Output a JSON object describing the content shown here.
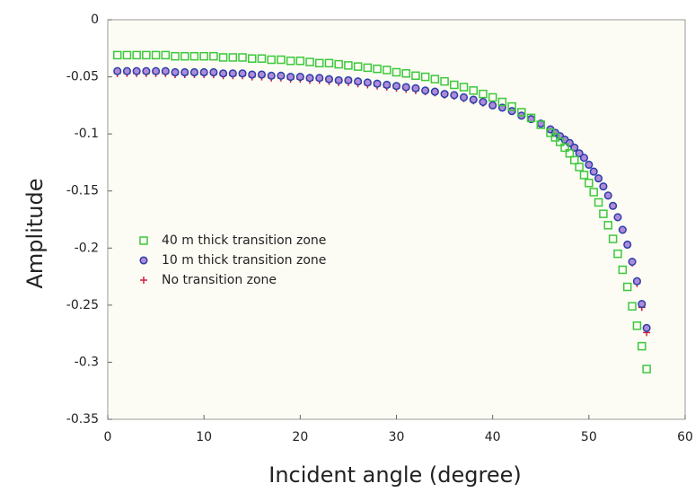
{
  "chart_data": {
    "type": "scatter",
    "xlabel": "Incident angle (degree)",
    "ylabel": "Amplitude",
    "xlim": [
      0,
      60
    ],
    "ylim": [
      -0.35,
      0
    ],
    "xticks": [
      0,
      10,
      20,
      30,
      40,
      50,
      60
    ],
    "yticks": [
      0,
      -0.05,
      -0.1,
      -0.15,
      -0.2,
      -0.25,
      -0.3,
      -0.35
    ],
    "x": [
      1,
      2,
      3,
      4,
      5,
      6,
      7,
      8,
      9,
      10,
      11,
      12,
      13,
      14,
      15,
      16,
      17,
      18,
      19,
      20,
      21,
      22,
      23,
      24,
      25,
      26,
      27,
      28,
      29,
      30,
      31,
      32,
      33,
      34,
      35,
      36,
      37,
      38,
      39,
      40,
      41,
      42,
      43,
      44,
      45,
      46,
      46.5,
      47,
      47.5,
      48,
      48.5,
      49,
      49.5,
      50,
      50.5,
      51,
      51.5,
      52,
      52.5,
      53,
      53.5,
      54,
      54.5,
      55,
      55.5,
      56
    ],
    "series": [
      {
        "name": "40 m thick transition zone",
        "color": "#3cc83c",
        "marker": "square",
        "values": [
          -0.031,
          -0.031,
          -0.031,
          -0.031,
          -0.031,
          -0.031,
          -0.032,
          -0.032,
          -0.032,
          -0.032,
          -0.032,
          -0.033,
          -0.033,
          -0.033,
          -0.034,
          -0.034,
          -0.035,
          -0.035,
          -0.036,
          -0.036,
          -0.037,
          -0.038,
          -0.038,
          -0.039,
          -0.04,
          -0.041,
          -0.042,
          -0.043,
          -0.044,
          -0.046,
          -0.047,
          -0.049,
          -0.05,
          -0.052,
          -0.054,
          -0.057,
          -0.059,
          -0.062,
          -0.065,
          -0.068,
          -0.072,
          -0.076,
          -0.081,
          -0.086,
          -0.092,
          -0.099,
          -0.103,
          -0.107,
          -0.112,
          -0.117,
          -0.123,
          -0.129,
          -0.136,
          -0.143,
          -0.151,
          -0.16,
          -0.17,
          -0.18,
          -0.192,
          -0.205,
          -0.219,
          -0.234,
          -0.251,
          -0.268,
          -0.286,
          -0.306
        ]
      },
      {
        "name": "10 m thick transition zone",
        "color": "#2a3fa8",
        "marker": "circle",
        "values": [
          -0.045,
          -0.045,
          -0.045,
          -0.045,
          -0.045,
          -0.045,
          -0.046,
          -0.046,
          -0.046,
          -0.046,
          -0.046,
          -0.047,
          -0.047,
          -0.047,
          -0.048,
          -0.048,
          -0.049,
          -0.049,
          -0.05,
          -0.05,
          -0.051,
          -0.051,
          -0.052,
          -0.053,
          -0.053,
          -0.054,
          -0.055,
          -0.056,
          -0.057,
          -0.058,
          -0.059,
          -0.06,
          -0.062,
          -0.063,
          -0.065,
          -0.066,
          -0.068,
          -0.07,
          -0.072,
          -0.075,
          -0.077,
          -0.08,
          -0.084,
          -0.087,
          -0.091,
          -0.096,
          -0.099,
          -0.102,
          -0.105,
          -0.108,
          -0.112,
          -0.117,
          -0.121,
          -0.127,
          -0.133,
          -0.139,
          -0.146,
          -0.154,
          -0.163,
          -0.173,
          -0.184,
          -0.197,
          -0.212,
          -0.229,
          -0.249,
          -0.27
        ]
      },
      {
        "name": "No transition zone",
        "color": "#d0203a",
        "marker": "plus",
        "values": [
          -0.047,
          -0.047,
          -0.047,
          -0.047,
          -0.047,
          -0.047,
          -0.048,
          -0.048,
          -0.048,
          -0.048,
          -0.048,
          -0.049,
          -0.049,
          -0.049,
          -0.05,
          -0.05,
          -0.051,
          -0.051,
          -0.052,
          -0.052,
          -0.053,
          -0.053,
          -0.054,
          -0.055,
          -0.055,
          -0.056,
          -0.057,
          -0.058,
          -0.059,
          -0.06,
          -0.061,
          -0.062,
          -0.063,
          -0.064,
          -0.066,
          -0.067,
          -0.069,
          -0.071,
          -0.073,
          -0.075,
          -0.077,
          -0.08,
          -0.084,
          -0.087,
          -0.091,
          -0.096,
          -0.099,
          -0.102,
          -0.105,
          -0.108,
          -0.112,
          -0.117,
          -0.121,
          -0.127,
          -0.133,
          -0.139,
          -0.146,
          -0.154,
          -0.163,
          -0.173,
          -0.184,
          -0.197,
          -0.213,
          -0.231,
          -0.252,
          -0.274
        ]
      }
    ],
    "legend": "left"
  }
}
